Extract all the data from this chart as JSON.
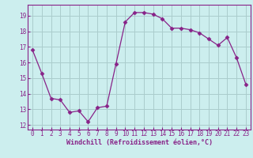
{
  "x": [
    0,
    1,
    2,
    3,
    4,
    5,
    6,
    7,
    8,
    9,
    10,
    11,
    12,
    13,
    14,
    15,
    16,
    17,
    18,
    19,
    20,
    21,
    22,
    23
  ],
  "y": [
    16.8,
    15.3,
    13.7,
    13.6,
    12.8,
    12.9,
    12.2,
    13.1,
    13.2,
    15.9,
    18.6,
    19.2,
    19.2,
    19.1,
    18.8,
    18.2,
    18.2,
    18.1,
    17.9,
    17.5,
    17.1,
    17.6,
    16.3,
    14.6
  ],
  "line_color": "#882288",
  "marker": "D",
  "marker_size": 2.5,
  "bg_color": "#cceeee",
  "grid_color": "#aacccc",
  "xlabel": "Windchill (Refroidissement éolien,°C)",
  "xlabel_color": "#882288",
  "tick_color": "#882288",
  "label_color": "#882288",
  "xlim": [
    -0.5,
    23.5
  ],
  "ylim": [
    11.7,
    19.7
  ],
  "yticks": [
    12,
    13,
    14,
    15,
    16,
    17,
    18,
    19
  ],
  "xticks": [
    0,
    1,
    2,
    3,
    4,
    5,
    6,
    7,
    8,
    9,
    10,
    11,
    12,
    13,
    14,
    15,
    16,
    17,
    18,
    19,
    20,
    21,
    22,
    23
  ],
  "tick_fontsize": 5.5,
  "xlabel_fontsize": 6.0
}
